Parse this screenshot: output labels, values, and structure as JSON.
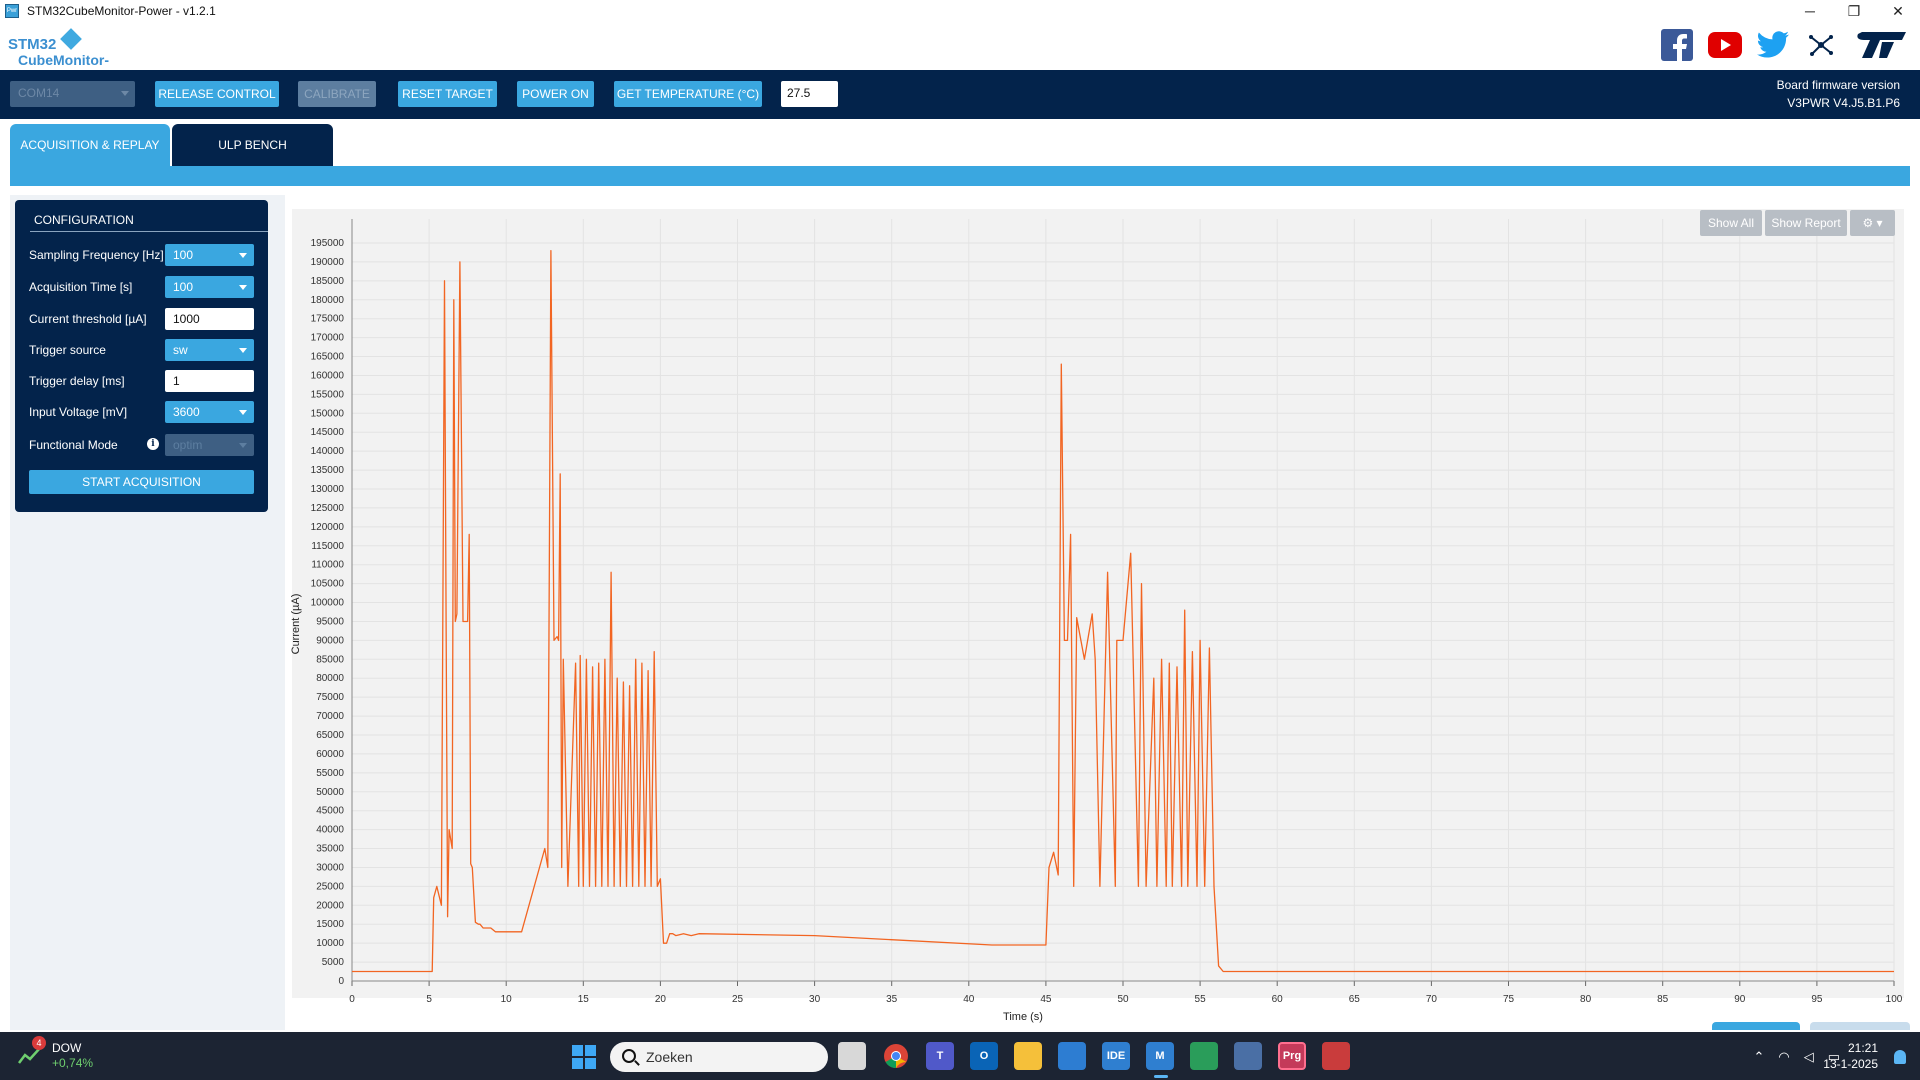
{
  "window": {
    "title": "STM32CubeMonitor-Power - v1.2.1",
    "icon_label": "Pwr",
    "controls": [
      "─",
      "❐",
      "✕"
    ]
  },
  "header": {
    "logo_top": "STM32",
    "logo_bottom": "CubeMonitor-Power",
    "socials": [
      "facebook-icon",
      "youtube-icon",
      "twitter-icon",
      "share-network-icon",
      "st-logo"
    ],
    "colors": {
      "facebook": "#3b5998",
      "youtube": "#e00000",
      "twitter": "#1da1f2",
      "st": "#03234b"
    }
  },
  "toolbar": {
    "port": "COM14",
    "release_control": "RELEASE CONTROL",
    "calibrate": "CALIBRATE",
    "reset_target": "RESET TARGET",
    "power_on": "POWER ON",
    "get_temperature": "GET TEMPERATURE (°C)",
    "temperature_value": "27.5",
    "firmware_label": "Board firmware version",
    "firmware_version": "V3PWR V4.J5.B1.P6"
  },
  "tabs": {
    "acquisition": "ACQUISITION & REPLAY",
    "ulp_bench": "ULP BENCH"
  },
  "config": {
    "title": "CONFIGURATION",
    "sampling_label": "Sampling Frequency [Hz]",
    "sampling_value": "100",
    "acq_time_label": "Acquisition Time [s]",
    "acq_time_value": "100",
    "threshold_label": "Current threshold [µA]",
    "threshold_value": "1000",
    "trigger_source_label": "Trigger source",
    "trigger_source_value": "sw",
    "trigger_delay_label": "Trigger delay [ms]",
    "trigger_delay_value": "1",
    "input_voltage_label": "Input Voltage [mV]",
    "input_voltage_value": "3600",
    "functional_mode_label": "Functional Mode",
    "functional_mode_value": "optim",
    "info_glyph": "i",
    "start_label": "START ACQUISITION"
  },
  "chart_buttons": {
    "show_all": "Show All",
    "show_report": "Show Report",
    "settings": "⚙ ▾"
  },
  "chart_data": {
    "type": "line",
    "title": "",
    "xlabel": "Time (s)",
    "ylabel": "Current (µA)",
    "xlim": [
      0,
      100
    ],
    "ylim": [
      0,
      195000
    ],
    "x_ticks": [
      0,
      5,
      10,
      15,
      20,
      25,
      30,
      35,
      40,
      45,
      50,
      55,
      60,
      65,
      70,
      75,
      80,
      85,
      90,
      95,
      100
    ],
    "y_ticks": [
      0,
      5000,
      10000,
      15000,
      20000,
      25000,
      30000,
      35000,
      40000,
      45000,
      50000,
      55000,
      60000,
      65000,
      70000,
      75000,
      80000,
      85000,
      90000,
      95000,
      100000,
      105000,
      110000,
      115000,
      120000,
      125000,
      130000,
      135000,
      140000,
      145000,
      150000,
      155000,
      160000,
      165000,
      170000,
      175000,
      180000,
      185000,
      190000,
      195000
    ],
    "grid": true,
    "line_color": "#f26522",
    "series": [
      {
        "x": [
          0,
          5.2,
          5.3,
          5.5,
          5.8,
          6.0,
          6.1,
          6.2,
          6.3,
          6.5,
          6.6,
          6.7,
          6.8,
          7.0,
          7.2,
          7.5,
          7.6,
          7.7,
          7.8,
          8.0,
          8.2,
          8.3,
          8.5,
          9.0,
          9.3,
          11.0,
          12.5,
          12.7,
          12.9,
          13.1,
          13.3,
          13.4,
          13.5,
          13.6,
          13.7,
          14.0,
          14.5,
          14.7,
          14.8,
          15.0,
          15.2,
          15.4,
          15.6,
          15.8,
          16.0,
          16.2,
          16.4,
          16.6,
          16.8,
          17.0,
          17.2,
          17.4,
          17.6,
          17.8,
          18.0,
          18.2,
          18.4,
          18.6,
          18.8,
          19.0,
          19.2,
          19.4,
          19.6,
          19.8,
          20.0,
          20.2,
          20.4,
          20.6,
          20.8,
          21.0,
          21.5,
          22.0,
          22.5,
          30.0,
          41.5,
          42.0,
          43.0,
          45.0,
          45.2,
          45.5,
          45.8,
          46.0,
          46.2,
          46.4,
          46.6,
          46.8,
          47.0,
          47.5,
          48.0,
          48.2,
          48.5,
          49.0,
          49.5,
          49.6,
          50.0,
          50.5,
          51.0,
          51.2,
          51.5,
          52.0,
          52.2,
          52.5,
          52.8,
          53.0,
          53.2,
          53.5,
          53.8,
          54.0,
          54.2,
          54.5,
          54.8,
          55.0,
          55.3,
          55.6,
          55.9,
          56.2,
          56.5,
          56.8,
          57.0,
          60.0,
          80.0,
          100.0
        ],
        "y": [
          2500,
          2500,
          22000,
          25000,
          20000,
          185000,
          95000,
          17000,
          40000,
          35000,
          180000,
          95000,
          97000,
          190000,
          95000,
          95000,
          118000,
          31000,
          30000,
          15500,
          15000,
          15000,
          14000,
          14000,
          13000,
          13000,
          35000,
          30000,
          193000,
          90000,
          91000,
          90000,
          134000,
          30000,
          85000,
          25000,
          84000,
          25000,
          86000,
          25000,
          85000,
          25000,
          83000,
          25000,
          84000,
          25000,
          85000,
          25000,
          108000,
          25000,
          80000,
          25000,
          79000,
          25000,
          78000,
          25000,
          85000,
          25000,
          84000,
          25000,
          82000,
          25000,
          87000,
          25000,
          27000,
          10000,
          10000,
          12500,
          12500,
          12000,
          12500,
          12000,
          12500,
          12000,
          9500,
          9500,
          9500,
          9500,
          30000,
          34000,
          28000,
          163000,
          90000,
          90000,
          118000,
          25000,
          96000,
          85000,
          97000,
          85000,
          25000,
          108000,
          25000,
          90000,
          90000,
          113000,
          25000,
          105000,
          25000,
          80000,
          25000,
          85000,
          25000,
          84000,
          25000,
          83000,
          25000,
          98000,
          25000,
          87000,
          25000,
          90000,
          25000,
          88000,
          25000,
          4000,
          2500,
          2500,
          2500,
          2500,
          2500,
          2500
        ]
      }
    ]
  },
  "taskbar": {
    "ticker": "DOW",
    "change": "+0,74%",
    "badge": "4",
    "search": "Zoeken",
    "apps": [
      "IDE",
      "M",
      "Prg"
    ],
    "time": "21:21",
    "date": "13-1-2025"
  }
}
